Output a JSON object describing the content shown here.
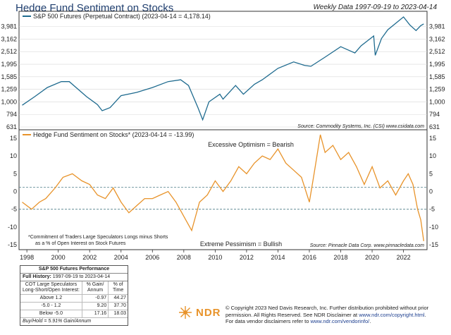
{
  "title": "Hedge Fund Sentiment on Stocks",
  "subtitle": "Weekly Data 1997-09-19 to 2023-04-14",
  "chart_data": [
    {
      "type": "line",
      "legend": "S&P 500 Futures (Perpetual Contract) (2023-04-14 = 4,178.14)",
      "source": "Source: Commodity Systems, Inc. (CSI) www.csidata.com",
      "yscale": "log",
      "ylim": [
        631,
        5000
      ],
      "yticks": [
        "3,981",
        "3,162",
        "2,512",
        "1,995",
        "1,585",
        "1,259",
        "1,000",
        "794",
        "631"
      ],
      "color": "#1f6b8f",
      "x": [
        1997.7,
        1998.5,
        1999.3,
        2000.2,
        2000.7,
        2001.3,
        2001.8,
        2002.5,
        2002.8,
        2003.3,
        2004.0,
        2005.0,
        2006.0,
        2007.0,
        2007.8,
        2008.3,
        2008.9,
        2009.2,
        2009.6,
        2010.3,
        2010.5,
        2011.3,
        2011.8,
        2012.5,
        2013.0,
        2014.0,
        2015.0,
        2015.7,
        2016.1,
        2017.0,
        2018.0,
        2018.9,
        2019.3,
        2020.1,
        2020.2,
        2020.6,
        2021.0,
        2022.0,
        2022.4,
        2022.8,
        2023.1,
        2023.29
      ],
      "values": [
        940,
        1100,
        1300,
        1450,
        1450,
        1250,
        1100,
        950,
        850,
        900,
        1120,
        1190,
        1300,
        1450,
        1500,
        1350,
        900,
        720,
        1000,
        1150,
        1050,
        1350,
        1150,
        1380,
        1500,
        1850,
        2080,
        1950,
        1920,
        2270,
        2750,
        2450,
        2800,
        3350,
        2350,
        3200,
        3750,
        4750,
        4100,
        3700,
        4050,
        4178.14
      ]
    },
    {
      "type": "line",
      "legend": "Hedge Fund Sentiment on Stocks* (2023-04-14 = -13.99)",
      "source": "Source: Pinnacle Data Corp. www.pinnacledata.com",
      "ylim": [
        -16,
        17
      ],
      "yticks": [
        "15",
        "10",
        "5",
        "0",
        "-5",
        "-10",
        "-15"
      ],
      "reference_lines": [
        1.2,
        -5.0
      ],
      "color": "#e8932a",
      "annotations": [
        "Excessive Optimism = Bearish",
        "Extreme Pessimism = Bullish"
      ],
      "note": [
        "*Commitment of Traders Large Speculators Longs minus Shorts",
        "as a % of Open Interest on Stock Futures"
      ],
      "x": [
        1997.7,
        1998.3,
        1998.8,
        1999.2,
        1999.8,
        2000.3,
        2000.9,
        2001.5,
        2002.0,
        2002.5,
        2003.0,
        2003.5,
        2004.0,
        2004.5,
        2005.0,
        2005.5,
        2006.0,
        2006.5,
        2007.0,
        2007.5,
        2008.0,
        2008.5,
        2009.0,
        2009.5,
        2010.0,
        2010.5,
        2011.0,
        2011.5,
        2012.0,
        2012.5,
        2013.0,
        2013.5,
        2014.0,
        2014.5,
        2015.0,
        2015.5,
        2016.0,
        2016.3,
        2016.7,
        2017.0,
        2017.5,
        2018.0,
        2018.5,
        2019.0,
        2019.5,
        2020.0,
        2020.5,
        2021.0,
        2021.5,
        2022.0,
        2022.3,
        2022.6,
        2022.9,
        2023.1,
        2023.29
      ],
      "values": [
        -3,
        -5,
        -3,
        -2,
        1,
        4,
        5,
        3,
        2,
        -1,
        -2,
        1,
        -3,
        -6,
        -4,
        -2,
        -2,
        -1,
        0,
        -3,
        -7,
        -11,
        -3,
        -1,
        3,
        0,
        3,
        7,
        5,
        8,
        10,
        9,
        12,
        8,
        6,
        4,
        -3,
        5,
        16,
        11,
        13,
        9,
        11,
        7,
        2,
        7,
        1,
        3,
        -1,
        3,
        5,
        2,
        -5,
        -8,
        -13.99
      ]
    }
  ],
  "xaxis": {
    "ticks": [
      "1998",
      "2000",
      "2002",
      "2004",
      "2006",
      "2008",
      "2010",
      "2012",
      "2014",
      "2016",
      "2018",
      "2020",
      "2022"
    ],
    "values": [
      1998,
      2000,
      2002,
      2004,
      2006,
      2008,
      2010,
      2012,
      2014,
      2016,
      2018,
      2020,
      2022
    ]
  },
  "table": {
    "title": "S&P 500 Futures Performance",
    "history_label": "Full History:",
    "history_range": "1997-09-19 to 2023-04-14",
    "header": [
      "COT Large Speculators Long-Short/Open Interest:",
      "% Gain/ Annum",
      "% of Time"
    ],
    "rows": [
      {
        "label": "Above 1.2",
        "gain": "-0.97",
        "time": "44.27"
      },
      {
        "label": "-5.0 - 1.2",
        "gain": "9.20",
        "time": "37.70"
      },
      {
        "label": "Below -5.0",
        "gain": "17.16",
        "time": "18.03"
      }
    ],
    "footer": "Buy/Hold = 5.91% Gain/Annum"
  },
  "logo": "NDR",
  "copyright": {
    "line1": "© Copyright 2023 Ned Davis Research, Inc. Further distribution prohibited without prior",
    "line2a": "permission. All Rights Reserved. See NDR Disclaimer at ",
    "link1": "www.ndr.com/copyright.html",
    "line2b": ".",
    "line3a": "For data vendor disclaimers refer to ",
    "link2": "www.ndr.com/vendorinfo/",
    "line3b": "."
  }
}
